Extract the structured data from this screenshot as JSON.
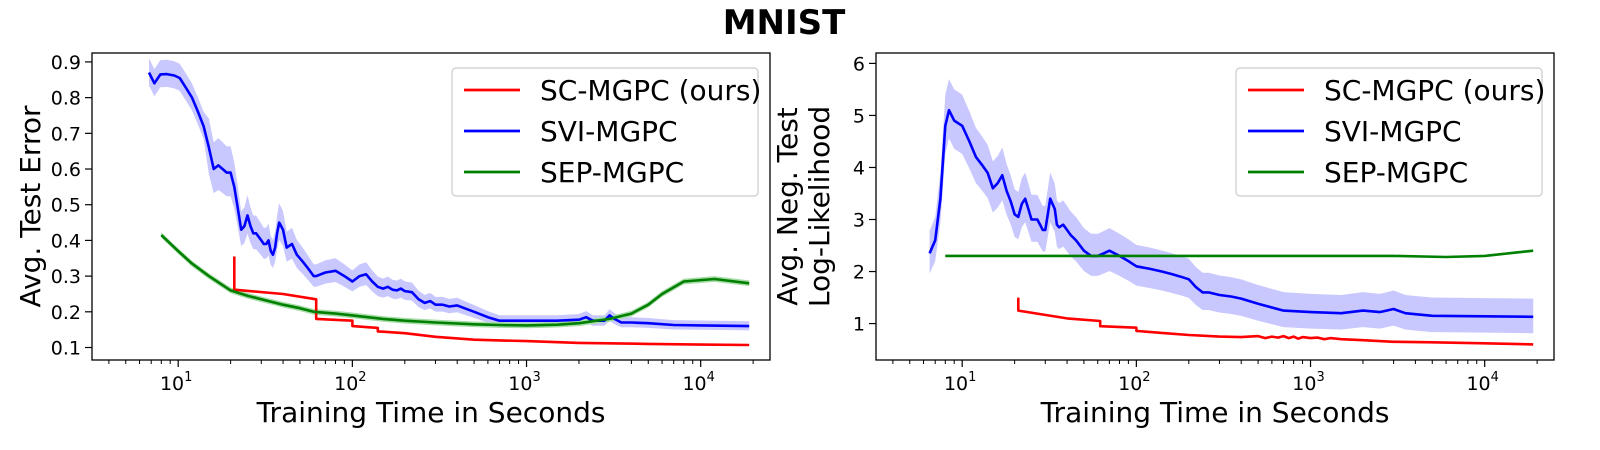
{
  "title": "MNIST",
  "colors": {
    "sc": "#ff0000",
    "svi": "#0000ff",
    "sep": "#008000",
    "svi_band": "#c8c8ff",
    "sep_band": "#a8dca8"
  },
  "chart_data": [
    {
      "type": "line",
      "xscale": "log",
      "xlim": [
        3.2,
        25000
      ],
      "ylim": [
        0.065,
        0.925
      ],
      "xlabel": "Training Time in Seconds",
      "ylabel": "Avg. Test Error",
      "ylabel_lines": [
        "Avg. Test Error"
      ],
      "xticks": [
        {
          "base": "10",
          "exp": "1",
          "value": 10
        },
        {
          "base": "10",
          "exp": "2",
          "value": 100
        },
        {
          "base": "10",
          "exp": "3",
          "value": 1000
        },
        {
          "base": "10",
          "exp": "4",
          "value": 10000
        }
      ],
      "yticks": [
        {
          "label": "0.1",
          "value": 0.1
        },
        {
          "label": "0.2",
          "value": 0.2
        },
        {
          "label": "0.3",
          "value": 0.3
        },
        {
          "label": "0.4",
          "value": 0.4
        },
        {
          "label": "0.5",
          "value": 0.5
        },
        {
          "label": "0.6",
          "value": 0.6
        },
        {
          "label": "0.7",
          "value": 0.7
        },
        {
          "label": "0.8",
          "value": 0.8
        },
        {
          "label": "0.9",
          "value": 0.9
        }
      ],
      "grid": false,
      "legend_position": "top-right",
      "legend": [
        {
          "label": "SC-MGPC (ours)",
          "color_key": "sc"
        },
        {
          "label": "SVI-MGPC",
          "color_key": "svi"
        },
        {
          "label": "SEP-MGPC",
          "color_key": "sep"
        }
      ],
      "series": [
        {
          "name": "SC-MGPC (ours)",
          "color_key": "sc",
          "x": [
            21,
            21,
            21,
            40,
            62,
            62,
            100,
            100,
            140,
            140,
            200,
            300,
            500,
            700,
            1000,
            2000,
            5000,
            10000,
            19000
          ],
          "y": [
            0.355,
            0.265,
            0.262,
            0.25,
            0.235,
            0.18,
            0.175,
            0.16,
            0.155,
            0.145,
            0.14,
            0.13,
            0.122,
            0.12,
            0.118,
            0.113,
            0.11,
            0.108,
            0.107
          ]
        },
        {
          "name": "SVI-MGPC",
          "color_key": "svi",
          "x": [
            6.8,
            7.3,
            7.9,
            8.6,
            9.5,
            10.2,
            11,
            12,
            13,
            14,
            15,
            16,
            17,
            18,
            19,
            20,
            21,
            22,
            23,
            24,
            25,
            26,
            27,
            28,
            29,
            30,
            31,
            32,
            33,
            34,
            35,
            36,
            37,
            38,
            39,
            40,
            42,
            45,
            48,
            52,
            56,
            60,
            62,
            70,
            80,
            90,
            100,
            110,
            120,
            130,
            140,
            150,
            160,
            170,
            180,
            190,
            200,
            220,
            240,
            260,
            280,
            300,
            330,
            360,
            400,
            440,
            500,
            600,
            700,
            1000,
            1500,
            2000,
            2200,
            2400,
            2800,
            3000,
            3200,
            3500,
            4000,
            5000,
            7000,
            10000,
            19000
          ],
          "y": [
            0.87,
            0.84,
            0.865,
            0.866,
            0.862,
            0.855,
            0.83,
            0.8,
            0.76,
            0.72,
            0.66,
            0.6,
            0.61,
            0.6,
            0.59,
            0.59,
            0.55,
            0.49,
            0.43,
            0.44,
            0.47,
            0.44,
            0.42,
            0.42,
            0.41,
            0.4,
            0.39,
            0.39,
            0.4,
            0.37,
            0.36,
            0.38,
            0.42,
            0.45,
            0.44,
            0.43,
            0.38,
            0.39,
            0.36,
            0.34,
            0.32,
            0.3,
            0.3,
            0.31,
            0.315,
            0.3,
            0.285,
            0.3,
            0.305,
            0.285,
            0.27,
            0.265,
            0.27,
            0.262,
            0.26,
            0.265,
            0.258,
            0.255,
            0.235,
            0.225,
            0.23,
            0.22,
            0.22,
            0.215,
            0.218,
            0.21,
            0.2,
            0.185,
            0.175,
            0.175,
            0.175,
            0.178,
            0.185,
            0.175,
            0.175,
            0.19,
            0.18,
            0.17,
            0.17,
            0.168,
            0.163,
            0.162,
            0.16
          ]
        },
        {
          "name": "SEP-MGPC",
          "color_key": "sep",
          "x": [
            8,
            10,
            12,
            15,
            20,
            25,
            30,
            40,
            50,
            60,
            80,
            100,
            150,
            200,
            300,
            500,
            700,
            1000,
            1500,
            2000,
            3000,
            4000,
            5000,
            6000,
            8000,
            12000,
            19000
          ],
          "y": [
            0.415,
            0.37,
            0.335,
            0.3,
            0.26,
            0.245,
            0.235,
            0.22,
            0.21,
            0.2,
            0.195,
            0.19,
            0.18,
            0.175,
            0.17,
            0.165,
            0.163,
            0.162,
            0.164,
            0.168,
            0.18,
            0.195,
            0.22,
            0.25,
            0.285,
            0.292,
            0.28
          ]
        }
      ]
    },
    {
      "type": "line",
      "xscale": "log",
      "xlim": [
        3.2,
        25000
      ],
      "ylim": [
        0.3,
        6.2
      ],
      "xlabel": "Training Time in Seconds",
      "ylabel": "Avg. Neg. Test Log-Likelihood",
      "ylabel_lines": [
        "Avg. Neg. Test",
        "Log-Likelihood"
      ],
      "xticks": [
        {
          "base": "10",
          "exp": "1",
          "value": 10
        },
        {
          "base": "10",
          "exp": "2",
          "value": 100
        },
        {
          "base": "10",
          "exp": "3",
          "value": 1000
        },
        {
          "base": "10",
          "exp": "4",
          "value": 10000
        }
      ],
      "yticks": [
        {
          "label": "1",
          "value": 1
        },
        {
          "label": "2",
          "value": 2
        },
        {
          "label": "3",
          "value": 3
        },
        {
          "label": "4",
          "value": 4
        },
        {
          "label": "5",
          "value": 5
        },
        {
          "label": "6",
          "value": 6
        }
      ],
      "grid": false,
      "legend_position": "top-right",
      "legend": [
        {
          "label": "SC-MGPC (ours)",
          "color_key": "sc"
        },
        {
          "label": "SVI-MGPC",
          "color_key": "svi"
        },
        {
          "label": "SEP-MGPC",
          "color_key": "sep"
        }
      ],
      "series": [
        {
          "name": "SC-MGPC (ours)",
          "color_key": "sc",
          "x": [
            21,
            21,
            21,
            40,
            62,
            62,
            100,
            100,
            140,
            200,
            300,
            400,
            500,
            550,
            600,
            650,
            700,
            750,
            800,
            850,
            900,
            1000,
            1100,
            1200,
            1300,
            1500,
            2000,
            3000,
            5000,
            10000,
            19000
          ],
          "y": [
            1.5,
            1.3,
            1.25,
            1.1,
            1.05,
            0.95,
            0.92,
            0.86,
            0.82,
            0.78,
            0.75,
            0.74,
            0.76,
            0.72,
            0.75,
            0.73,
            0.76,
            0.72,
            0.75,
            0.71,
            0.74,
            0.72,
            0.73,
            0.7,
            0.72,
            0.7,
            0.68,
            0.65,
            0.64,
            0.62,
            0.6
          ]
        },
        {
          "name": "SVI-MGPC",
          "color_key": "svi",
          "x": [
            6.5,
            7,
            7.5,
            8,
            8.4,
            9,
            10,
            11,
            12,
            13,
            14,
            15,
            16,
            17,
            18,
            19,
            20,
            21,
            22,
            23,
            24,
            25,
            27,
            28,
            29,
            30,
            31,
            32,
            33,
            34,
            35,
            36,
            38,
            40,
            42,
            45,
            50,
            55,
            60,
            65,
            70,
            80,
            90,
            100,
            120,
            140,
            160,
            180,
            200,
            220,
            240,
            260,
            300,
            350,
            400,
            500,
            700,
            1000,
            1500,
            2000,
            2500,
            3000,
            3500,
            4000,
            5000,
            10000,
            19000
          ],
          "y": [
            2.35,
            2.6,
            3.4,
            4.8,
            5.1,
            4.9,
            4.8,
            4.5,
            4.2,
            4.05,
            3.9,
            3.6,
            3.7,
            3.85,
            3.55,
            3.35,
            3.1,
            3.05,
            3.3,
            3.4,
            3.2,
            3.0,
            3.0,
            2.9,
            2.8,
            2.8,
            3.1,
            3.4,
            3.3,
            3.2,
            2.9,
            2.85,
            2.9,
            2.8,
            2.7,
            2.6,
            2.4,
            2.3,
            2.3,
            2.35,
            2.4,
            2.3,
            2.2,
            2.1,
            2.05,
            2.0,
            1.95,
            1.9,
            1.85,
            1.7,
            1.6,
            1.6,
            1.55,
            1.52,
            1.48,
            1.38,
            1.25,
            1.22,
            1.2,
            1.25,
            1.22,
            1.28,
            1.2,
            1.18,
            1.15,
            1.14,
            1.13
          ]
        },
        {
          "name": "SEP-MGPC",
          "color_key": "sep",
          "x": [
            8,
            20,
            50,
            100,
            300,
            1000,
            3000,
            6000,
            10000,
            19000
          ],
          "y": [
            2.3,
            2.3,
            2.3,
            2.3,
            2.3,
            2.3,
            2.3,
            2.28,
            2.3,
            2.4
          ]
        }
      ]
    }
  ]
}
